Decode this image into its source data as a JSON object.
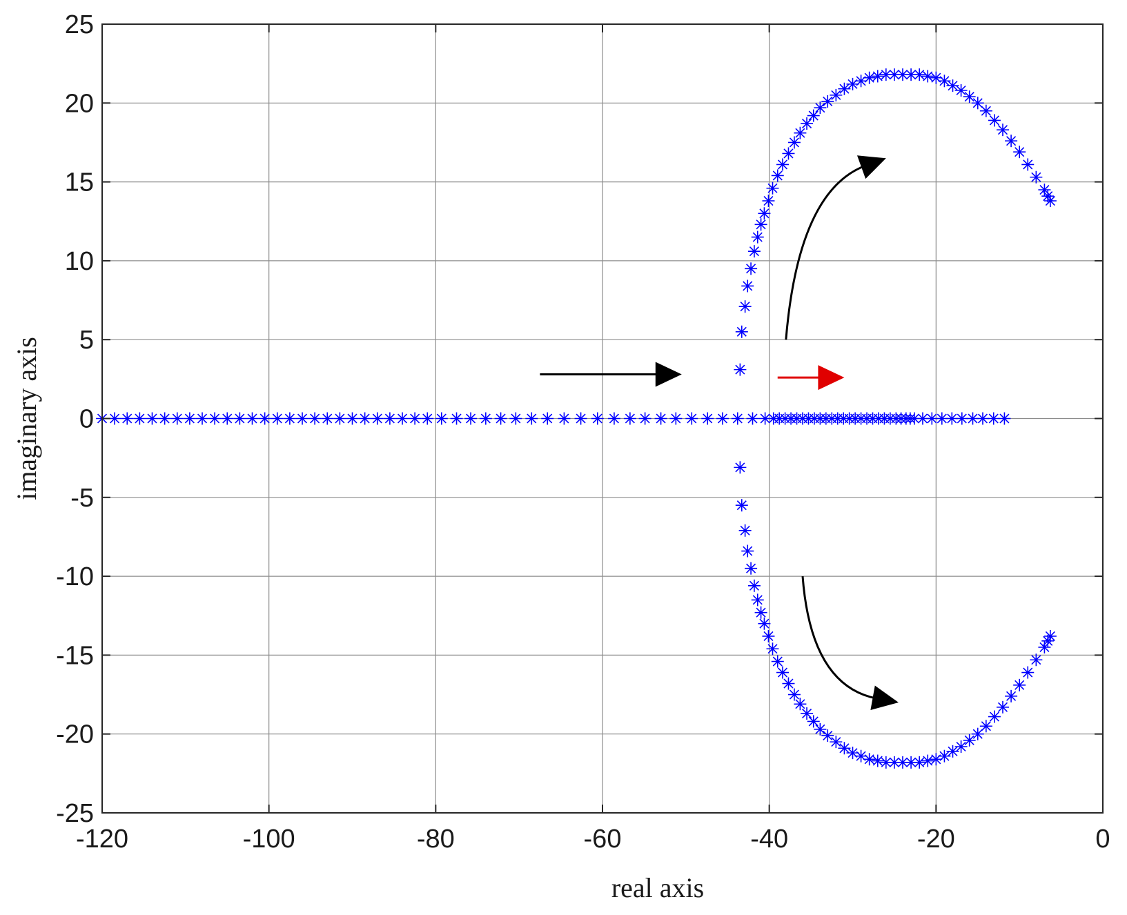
{
  "chart_data": {
    "type": "scatter",
    "title": "",
    "xlabel": "real axis",
    "ylabel": "imaginary axis",
    "xlim": [
      -120,
      0
    ],
    "ylim": [
      -25,
      25
    ],
    "xticks": [
      -120,
      -100,
      -80,
      -60,
      -40,
      -20,
      0
    ],
    "yticks": [
      -25,
      -20,
      -15,
      -10,
      -5,
      0,
      5,
      10,
      15,
      20,
      25
    ],
    "x_tick_labels": [
      "-120",
      "-100",
      "-80",
      "-60",
      "-40",
      "-20",
      "0"
    ],
    "y_tick_labels": [
      "-25",
      "-20",
      "-15",
      "-10",
      "-5",
      "0",
      "5",
      "10",
      "15",
      "20",
      "25"
    ],
    "grid": true,
    "marker": "asterisk",
    "marker_color": "#0000ff",
    "series": [
      {
        "role": "real-axis roots",
        "points": [
          [
            -120,
            0
          ],
          [
            -118.5,
            0
          ],
          [
            -117,
            0
          ],
          [
            -115.5,
            0
          ],
          [
            -114,
            0
          ],
          [
            -112.5,
            0
          ],
          [
            -111,
            0
          ],
          [
            -109.5,
            0
          ],
          [
            -108,
            0
          ],
          [
            -106.5,
            0
          ],
          [
            -105,
            0
          ],
          [
            -103.5,
            0
          ],
          [
            -102,
            0
          ],
          [
            -100.5,
            0
          ],
          [
            -99,
            0
          ],
          [
            -97.5,
            0
          ],
          [
            -96,
            0
          ],
          [
            -94.5,
            0
          ],
          [
            -93,
            0
          ],
          [
            -91.5,
            0
          ],
          [
            -90,
            0
          ],
          [
            -88.5,
            0
          ],
          [
            -87,
            0
          ],
          [
            -85.5,
            0
          ],
          [
            -84,
            0
          ],
          [
            -82.5,
            0
          ],
          [
            -81,
            0
          ],
          [
            -79.3,
            0
          ],
          [
            -77.5,
            0
          ],
          [
            -75.8,
            0
          ],
          [
            -74,
            0
          ],
          [
            -72.2,
            0
          ],
          [
            -70.4,
            0
          ],
          [
            -68.5,
            0
          ],
          [
            -66.6,
            0
          ],
          [
            -64.6,
            0
          ],
          [
            -62.6,
            0
          ],
          [
            -60.6,
            0
          ],
          [
            -58.6,
            0
          ],
          [
            -56.7,
            0
          ],
          [
            -54.9,
            0
          ],
          [
            -53,
            0
          ],
          [
            -51.2,
            0
          ],
          [
            -49.3,
            0
          ],
          [
            -47.4,
            0
          ],
          [
            -45.6,
            0
          ],
          [
            -43.8,
            0
          ],
          [
            -42,
            0
          ],
          [
            -40.5,
            0
          ],
          [
            -39.5,
            0
          ],
          [
            -38.8,
            0
          ],
          [
            -38.1,
            0
          ],
          [
            -37.4,
            0
          ],
          [
            -36.7,
            0
          ],
          [
            -36,
            0
          ],
          [
            -35.3,
            0
          ],
          [
            -34.6,
            0
          ],
          [
            -33.9,
            0
          ],
          [
            -33.2,
            0
          ],
          [
            -32.5,
            0
          ],
          [
            -31.8,
            0
          ],
          [
            -31.1,
            0
          ],
          [
            -30.4,
            0
          ],
          [
            -29.7,
            0
          ],
          [
            -29,
            0
          ],
          [
            -28.3,
            0
          ],
          [
            -27.6,
            0
          ],
          [
            -26.9,
            0
          ],
          [
            -26.2,
            0
          ],
          [
            -25.5,
            0
          ],
          [
            -24.8,
            0
          ],
          [
            -24.2,
            0
          ],
          [
            -23.6,
            0
          ],
          [
            -23.1,
            0
          ],
          [
            -22.6,
            0
          ],
          [
            -21.6,
            0
          ],
          [
            -20.5,
            0
          ],
          [
            -19.3,
            0
          ],
          [
            -18.1,
            0
          ],
          [
            -16.9,
            0
          ],
          [
            -15.6,
            0
          ],
          [
            -14.4,
            0
          ],
          [
            -13.1,
            0
          ],
          [
            -11.8,
            0
          ]
        ]
      },
      {
        "role": "upper branch",
        "points": [
          [
            -43.5,
            3.1
          ],
          [
            -43.3,
            5.5
          ],
          [
            -42.9,
            7.1
          ],
          [
            -42.6,
            8.4
          ],
          [
            -42.2,
            9.5
          ],
          [
            -41.8,
            10.6
          ],
          [
            -41.4,
            11.5
          ],
          [
            -41,
            12.3
          ],
          [
            -40.6,
            13
          ],
          [
            -40.1,
            13.8
          ],
          [
            -39.6,
            14.6
          ],
          [
            -39,
            15.4
          ],
          [
            -38.4,
            16.1
          ],
          [
            -37.7,
            16.8
          ],
          [
            -37,
            17.5
          ],
          [
            -36.3,
            18.1
          ],
          [
            -35.5,
            18.7
          ],
          [
            -34.7,
            19.2
          ],
          [
            -33.9,
            19.7
          ],
          [
            -33,
            20.1
          ],
          [
            -32,
            20.5
          ],
          [
            -31,
            20.9
          ],
          [
            -30,
            21.2
          ],
          [
            -29,
            21.4
          ],
          [
            -28,
            21.6
          ],
          [
            -27,
            21.7
          ],
          [
            -26,
            21.8
          ],
          [
            -25,
            21.8
          ],
          [
            -24,
            21.8
          ],
          [
            -23,
            21.8
          ],
          [
            -22,
            21.8
          ],
          [
            -21,
            21.7
          ],
          [
            -20,
            21.6
          ],
          [
            -19,
            21.4
          ],
          [
            -18,
            21.1
          ],
          [
            -17,
            20.8
          ],
          [
            -16,
            20.4
          ],
          [
            -15,
            20
          ],
          [
            -14,
            19.5
          ],
          [
            -13,
            18.9
          ],
          [
            -12,
            18.3
          ],
          [
            -11,
            17.6
          ],
          [
            -10,
            16.9
          ],
          [
            -9,
            16.1
          ],
          [
            -8,
            15.3
          ],
          [
            -7,
            14.5
          ],
          [
            -6.6,
            14.1
          ],
          [
            -6.3,
            13.8
          ]
        ]
      },
      {
        "role": "lower branch",
        "points": [
          [
            -43.5,
            -3.1
          ],
          [
            -43.3,
            -5.5
          ],
          [
            -42.9,
            -7.1
          ],
          [
            -42.6,
            -8.4
          ],
          [
            -42.2,
            -9.5
          ],
          [
            -41.8,
            -10.6
          ],
          [
            -41.4,
            -11.5
          ],
          [
            -41,
            -12.3
          ],
          [
            -40.6,
            -13
          ],
          [
            -40.1,
            -13.8
          ],
          [
            -39.6,
            -14.6
          ],
          [
            -39,
            -15.4
          ],
          [
            -38.4,
            -16.1
          ],
          [
            -37.7,
            -16.8
          ],
          [
            -37,
            -17.5
          ],
          [
            -36.3,
            -18.1
          ],
          [
            -35.5,
            -18.7
          ],
          [
            -34.7,
            -19.2
          ],
          [
            -33.9,
            -19.7
          ],
          [
            -33,
            -20.1
          ],
          [
            -32,
            -20.5
          ],
          [
            -31,
            -20.9
          ],
          [
            -30,
            -21.2
          ],
          [
            -29,
            -21.4
          ],
          [
            -28,
            -21.6
          ],
          [
            -27,
            -21.7
          ],
          [
            -26,
            -21.8
          ],
          [
            -25,
            -21.8
          ],
          [
            -24,
            -21.8
          ],
          [
            -23,
            -21.8
          ],
          [
            -22,
            -21.8
          ],
          [
            -21,
            -21.7
          ],
          [
            -20,
            -21.6
          ],
          [
            -19,
            -21.4
          ],
          [
            -18,
            -21.1
          ],
          [
            -17,
            -20.8
          ],
          [
            -16,
            -20.4
          ],
          [
            -15,
            -20
          ],
          [
            -14,
            -19.5
          ],
          [
            -13,
            -18.9
          ],
          [
            -12,
            -18.3
          ],
          [
            -11,
            -17.6
          ],
          [
            -10,
            -16.9
          ],
          [
            -9,
            -16.1
          ],
          [
            -8,
            -15.3
          ],
          [
            -7,
            -14.5
          ],
          [
            -6.6,
            -14.1
          ],
          [
            -6.3,
            -13.8
          ]
        ]
      }
    ],
    "annotations": [
      {
        "kind": "straight-arrow",
        "color": "#000000",
        "points": [
          [
            -67.5,
            2.8
          ],
          [
            -50.5,
            2.8
          ]
        ]
      },
      {
        "kind": "straight-arrow",
        "color": "#e00000",
        "points": [
          [
            -39,
            2.6
          ],
          [
            -31,
            2.6
          ]
        ]
      },
      {
        "kind": "curved-arrow",
        "color": "#000000",
        "points": [
          [
            -38,
            5
          ],
          [
            -36.5,
            14.5
          ],
          [
            -26,
            16.5
          ]
        ]
      },
      {
        "kind": "curved-arrow",
        "color": "#000000",
        "points": [
          [
            -36,
            -10
          ],
          [
            -35,
            -17
          ],
          [
            -24.5,
            -18
          ]
        ]
      }
    ]
  }
}
